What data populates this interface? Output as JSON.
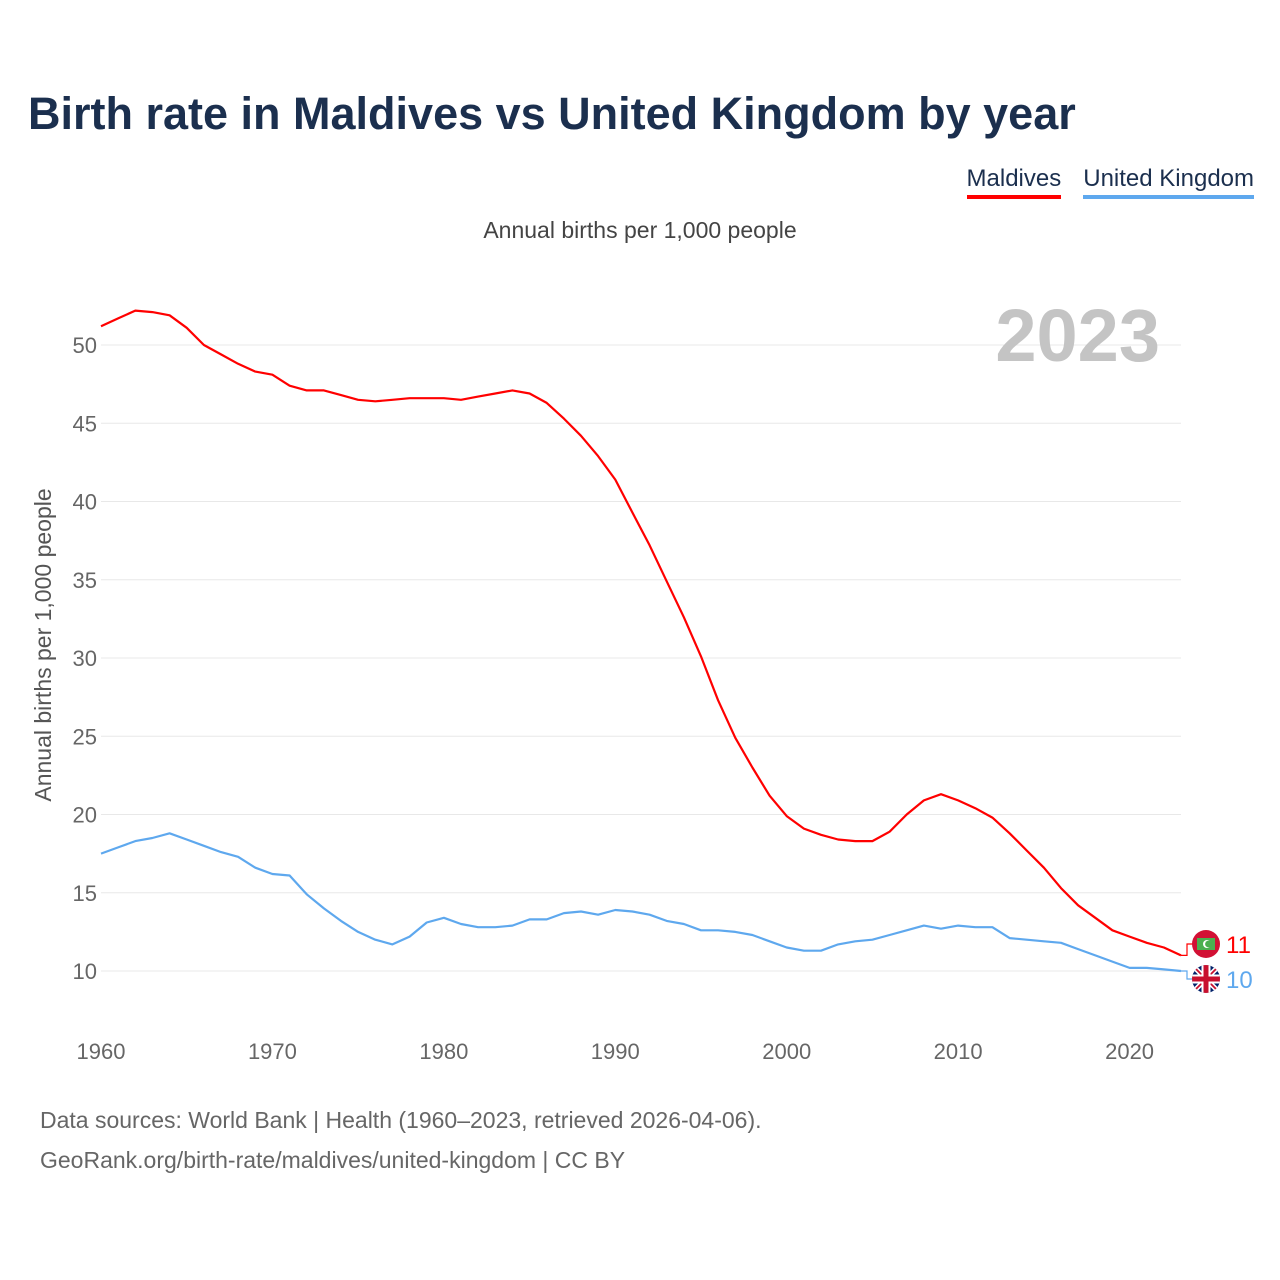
{
  "title": "Birth rate in Maldives vs United Kingdom by year",
  "footer": {
    "sources": "Data sources: World Bank | Health (1960–2023, retrieved 2026-04-06).",
    "link": "GeoRank.org/birth-rate/maldives/united-kingdom | CC BY"
  },
  "chart_data": {
    "type": "line",
    "title": "Birth rate in Maldives vs United Kingdom by year",
    "subtitle": "Annual births per 1,000 people",
    "ylabel": "Annual births per 1,000 people",
    "xlabel": "",
    "year_label": "2023",
    "xlim": [
      1960,
      2023
    ],
    "ylim": [
      7,
      53
    ],
    "grid": true,
    "legend_placement": "top-right",
    "x_ticks": [
      1960,
      1970,
      1980,
      1990,
      2000,
      2010,
      2020
    ],
    "y_ticks": [
      10,
      15,
      20,
      25,
      30,
      35,
      40,
      45,
      50
    ],
    "x": [
      1960,
      1961,
      1962,
      1963,
      1964,
      1965,
      1966,
      1967,
      1968,
      1969,
      1970,
      1971,
      1972,
      1973,
      1974,
      1975,
      1976,
      1977,
      1978,
      1979,
      1980,
      1981,
      1982,
      1983,
      1984,
      1985,
      1986,
      1987,
      1988,
      1989,
      1990,
      1991,
      1992,
      1993,
      1994,
      1995,
      1996,
      1997,
      1998,
      1999,
      2000,
      2001,
      2002,
      2003,
      2004,
      2005,
      2006,
      2007,
      2008,
      2009,
      2010,
      2011,
      2012,
      2013,
      2014,
      2015,
      2016,
      2017,
      2018,
      2019,
      2020,
      2021,
      2022,
      2023
    ],
    "series": [
      {
        "name": "Maldives",
        "color": "#ff0000",
        "end_label": "11",
        "values": [
          51.2,
          51.7,
          52.2,
          52.1,
          51.9,
          51.1,
          50.0,
          49.4,
          48.8,
          48.3,
          48.1,
          47.4,
          47.1,
          47.1,
          46.8,
          46.5,
          46.4,
          46.5,
          46.6,
          46.6,
          46.6,
          46.5,
          46.7,
          46.9,
          47.1,
          46.9,
          46.3,
          45.3,
          44.2,
          42.9,
          41.4,
          39.3,
          37.2,
          34.9,
          32.6,
          30.1,
          27.3,
          24.9,
          23.0,
          21.2,
          19.9,
          19.1,
          18.7,
          18.4,
          18.3,
          18.3,
          18.9,
          20.0,
          20.9,
          21.3,
          20.9,
          20.4,
          19.8,
          18.8,
          17.7,
          16.6,
          15.3,
          14.2,
          13.4,
          12.6,
          12.2,
          11.8,
          11.5,
          11.0
        ]
      },
      {
        "name": "United Kingdom",
        "color": "#5ea8ee",
        "end_label": "10",
        "values": [
          17.5,
          17.9,
          18.3,
          18.5,
          18.8,
          18.4,
          18.0,
          17.6,
          17.3,
          16.6,
          16.2,
          16.1,
          14.9,
          14.0,
          13.2,
          12.5,
          12.0,
          11.7,
          12.2,
          13.1,
          13.4,
          13.0,
          12.8,
          12.8,
          12.9,
          13.3,
          13.3,
          13.7,
          13.8,
          13.6,
          13.9,
          13.8,
          13.6,
          13.2,
          13.0,
          12.6,
          12.6,
          12.5,
          12.3,
          11.9,
          11.5,
          11.3,
          11.3,
          11.7,
          11.9,
          12.0,
          12.3,
          12.6,
          12.9,
          12.7,
          12.9,
          12.8,
          12.8,
          12.1,
          12.0,
          11.9,
          11.8,
          11.4,
          11.0,
          10.6,
          10.2,
          10.2,
          10.1,
          10.0
        ]
      }
    ]
  }
}
